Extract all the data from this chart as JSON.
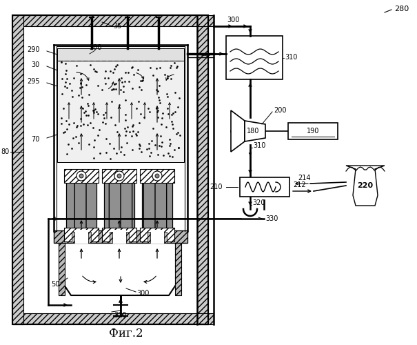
{
  "bg_color": "#ffffff",
  "lc": "#000000",
  "fig_label": "Фиг.2",
  "label_280": "280",
  "label_80": "80",
  "label_35": "35",
  "label_300a": "300",
  "label_300b": "300",
  "label_290": "290",
  "label_30": "30",
  "label_295": "295",
  "label_70": "70",
  "label_50": "50",
  "label_320": "320",
  "label_330": "330",
  "label_310a": "310",
  "label_310b": "310",
  "label_180": "180",
  "label_190": "190",
  "label_200": "200",
  "label_210": "210",
  "label_212": "212",
  "label_214": "214",
  "label_220": "220"
}
